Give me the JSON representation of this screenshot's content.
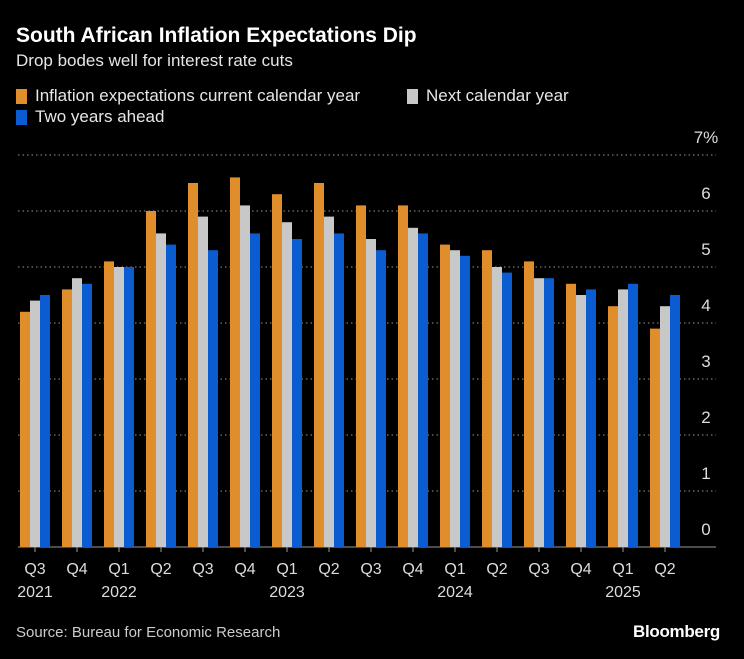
{
  "chart_data": {
    "type": "bar",
    "title": "South African Inflation Expectations Dip",
    "subtitle": "Drop bodes well for interest rate cuts",
    "categories": [
      "Q3",
      "Q4",
      "Q1",
      "Q2",
      "Q3",
      "Q4",
      "Q1",
      "Q2",
      "Q3",
      "Q4",
      "Q1",
      "Q2",
      "Q3",
      "Q4",
      "Q1",
      "Q2"
    ],
    "year_labels": [
      "2021",
      "",
      "2022",
      "",
      "",
      "",
      "2023",
      "",
      "",
      "",
      "2024",
      "",
      "",
      "",
      "2025",
      ""
    ],
    "series": [
      {
        "name": "Inflation expectations current calendar year",
        "color": "#e08e2b",
        "values": [
          4.2,
          4.6,
          5.1,
          6.0,
          6.5,
          6.6,
          6.3,
          6.5,
          6.1,
          6.1,
          5.4,
          5.3,
          5.1,
          4.7,
          4.3,
          3.9
        ]
      },
      {
        "name": "Next calendar year",
        "color": "#c8c8c8",
        "values": [
          4.4,
          4.8,
          5.0,
          5.6,
          5.9,
          6.1,
          5.8,
          5.9,
          5.5,
          5.7,
          5.3,
          5.0,
          4.8,
          4.5,
          4.6,
          4.3
        ]
      },
      {
        "name": "Two years ahead",
        "color": "#0a5cd0",
        "values": [
          4.5,
          4.7,
          5.0,
          5.4,
          5.3,
          5.6,
          5.5,
          5.6,
          5.3,
          5.6,
          5.2,
          4.9,
          4.8,
          4.6,
          4.7,
          4.5
        ]
      }
    ],
    "yticks": [
      "0",
      "1",
      "2",
      "3",
      "4",
      "5",
      "6",
      "7%"
    ],
    "ylim": [
      0,
      7
    ],
    "grid": true,
    "legend": "top-left",
    "source": "Source: Bureau for Economic Research",
    "logo": "Bloomberg"
  }
}
